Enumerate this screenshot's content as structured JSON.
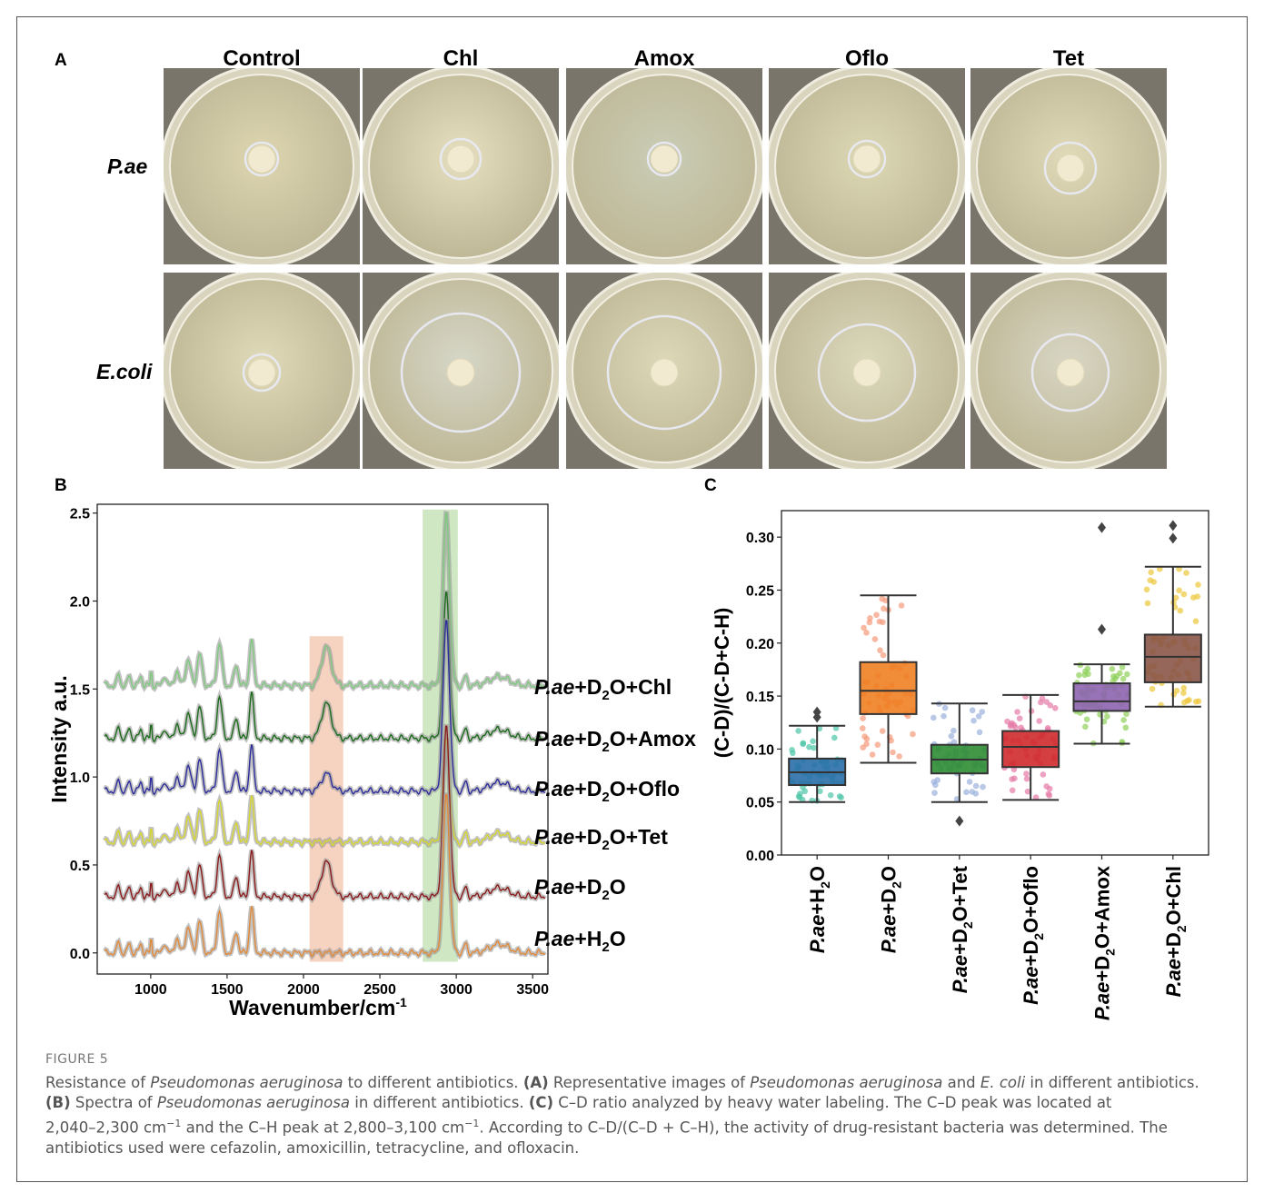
{
  "panel_a": {
    "letter": "A",
    "columns": [
      "Control",
      "Chl",
      "Amox",
      "Oflo",
      "Tet"
    ],
    "rows": [
      "P.ae",
      "E.coli"
    ]
  },
  "panel_b": {
    "letter": "B",
    "chart_data": {
      "type": "line",
      "xlabel": "Wavenumber/cm-1",
      "ylabel": "Intensity a.u.",
      "xlim": [
        650,
        3600
      ],
      "ylim": [
        -0.12,
        2.55
      ],
      "xticks": [
        1000,
        1500,
        2000,
        2500,
        3000,
        3500
      ],
      "yticks": [
        0.0,
        0.5,
        1.0,
        1.5,
        2.0,
        2.5
      ],
      "highlight_regions": [
        {
          "x": [
            2040,
            2260
          ],
          "color": "#f6d3c0"
        },
        {
          "x": [
            2780,
            3010
          ],
          "color": "#cfe7c3"
        }
      ],
      "series": [
        {
          "name": "P.ae+D2O+Chl",
          "offset": 1.52,
          "color": "#7fc97f",
          "cd_peak": 0.22,
          "ch_peak": 0.98
        },
        {
          "name": "P.ae+D2O+Amox",
          "offset": 1.22,
          "color": "#1b6b1b",
          "cd_peak": 0.2,
          "ch_peak": 0.83
        },
        {
          "name": "P.ae+D2O+Oflo",
          "offset": 0.92,
          "color": "#2c2c9c",
          "cd_peak": 0.1,
          "ch_peak": 0.97
        },
        {
          "name": "P.ae+D2O+Tet",
          "offset": 0.63,
          "color": "#d6d630",
          "cd_peak": 0.0,
          "ch_peak": 0.58
        },
        {
          "name": "P.ae+D2O",
          "offset": 0.32,
          "color": "#8b1a1a",
          "cd_peak": 0.2,
          "ch_peak": 0.97
        },
        {
          "name": "P.ae+H2O",
          "offset": 0.0,
          "color": "#e08a3c",
          "cd_peak": 0.0,
          "ch_peak": 0.9
        }
      ],
      "legend_labels": [
        {
          "pre": "P.ae",
          "mid": "+D",
          "sub": "2",
          "post": "O+Chl"
        },
        {
          "pre": "P.ae",
          "mid": "+D",
          "sub": "2",
          "post": "O+Amox"
        },
        {
          "pre": "P.ae",
          "mid": "+D",
          "sub": "2",
          "post": "O+Oflo"
        },
        {
          "pre": "P.ae",
          "mid": "+D",
          "sub": "2",
          "post": "O+Tet"
        },
        {
          "pre": "P.ae",
          "mid": "+D",
          "sub": "2",
          "post": "O"
        },
        {
          "pre": "P.ae",
          "mid": "+H",
          "sub": "2",
          "post": "O"
        }
      ]
    }
  },
  "panel_c": {
    "letter": "C",
    "chart_data": {
      "type": "box",
      "ylabel": "(C-D)/(C-D+C-H)",
      "ylim": [
        0.0,
        0.325
      ],
      "yticks": [
        0.0,
        0.05,
        0.1,
        0.15,
        0.2,
        0.25,
        0.3
      ],
      "ytick_labels": [
        "0.00",
        "0.05",
        "0.10",
        "0.15",
        "0.20",
        "0.25",
        "0.30"
      ],
      "boxes": [
        {
          "label": {
            "pre": "P.ae",
            "mid": "+H",
            "sub": "2",
            "post": "O"
          },
          "color": "#2a6fa8",
          "point_color": "#4fc6a8",
          "whisker_low": 0.05,
          "q1": 0.066,
          "median": 0.078,
          "q3": 0.091,
          "whisker_high": 0.122,
          "outliers": [
            0.13,
            0.135
          ]
        },
        {
          "label": {
            "pre": "P.ae",
            "mid": "+D",
            "sub": "2",
            "post": "O"
          },
          "color": "#ef7f22",
          "point_color": "#f59a7a",
          "whisker_low": 0.087,
          "q1": 0.133,
          "median": 0.155,
          "q3": 0.182,
          "whisker_high": 0.245,
          "outliers": []
        },
        {
          "label": {
            "pre": "P.ae",
            "mid": "+D",
            "sub": "2",
            "post": "O+Tet"
          },
          "color": "#2f8d33",
          "point_color": "#9ab0dc",
          "whisker_low": 0.05,
          "q1": 0.077,
          "median": 0.09,
          "q3": 0.104,
          "whisker_high": 0.143,
          "outliers": [
            0.032
          ]
        },
        {
          "label": {
            "pre": "P.ae",
            "mid": "+D",
            "sub": "2",
            "post": "O+Oflo"
          },
          "color": "#cf2b2d",
          "point_color": "#e67aa8",
          "whisker_low": 0.052,
          "q1": 0.083,
          "median": 0.102,
          "q3": 0.117,
          "whisker_high": 0.151,
          "outliers": []
        },
        {
          "label": {
            "pre": "P.ae",
            "mid": "+D",
            "sub": "2",
            "post": "O+Amox"
          },
          "color": "#8e64b0",
          "point_color": "#8ed05a",
          "whisker_low": 0.105,
          "q1": 0.136,
          "median": 0.145,
          "q3": 0.162,
          "whisker_high": 0.18,
          "outliers": [
            0.213,
            0.309
          ]
        },
        {
          "label": {
            "pre": "P.ae",
            "mid": "+D",
            "sub": "2",
            "post": "O+Chl"
          },
          "color": "#8a5548",
          "point_color": "#ecc63a",
          "whisker_low": 0.14,
          "q1": 0.163,
          "median": 0.187,
          "q3": 0.208,
          "whisker_high": 0.272,
          "outliers": [
            0.299,
            0.311
          ]
        }
      ]
    }
  },
  "caption": {
    "label": "FIGURE 5",
    "line1_a": "Resistance of ",
    "line1_b": "Pseudomonas aeruginosa",
    "line1_c": " to different antibiotics. ",
    "line1_d": "(A)",
    "line1_e": " Representative images of ",
    "line1_f": "Pseudomonas aeruginosa",
    "line1_g": " and ",
    "line1_h": "E. coli",
    "line1_i": " in different antibiotics.",
    "line2_a": "(B)",
    "line2_b": " Spectra of ",
    "line2_c": "Pseudomonas aeruginosa",
    "line2_d": " in different antibiotics. ",
    "line2_e": "(C)",
    "line2_f": " C–D ratio analyzed by heavy water labeling. The C–D peak was located at",
    "line3_a": "2,040–2,300 cm",
    "line3_b": "−1",
    "line3_c": " and the C–H peak at 2,800–3,100 cm",
    "line3_d": "−1",
    "line3_e": ". According to C–D/(C–D + C–H), the activity of drug-resistant bacteria was determined. The",
    "line4": "antibiotics used were cefazolin, amoxicillin, tetracycline, and ofloxacin."
  }
}
